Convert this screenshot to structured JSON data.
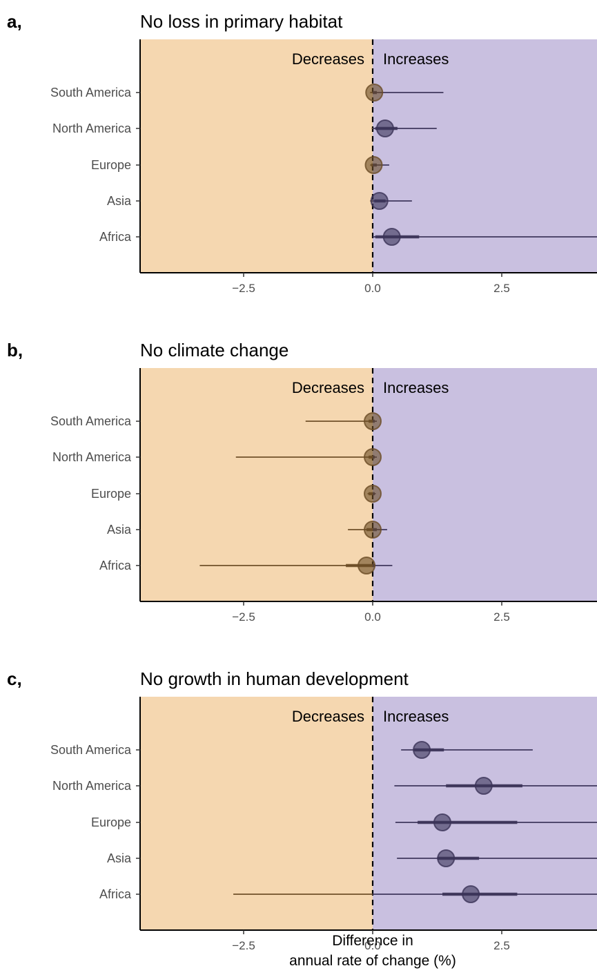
{
  "colors": {
    "decrease_bg": "#f5d7b0",
    "increase_bg": "#c9c0e0",
    "decrease_mark": "#6b4c26",
    "increase_mark": "#3b3358"
  },
  "region_labels": {
    "decrease": "Decreases",
    "increase": "Increases"
  },
  "xaxis": {
    "label_line1": "Difference in",
    "label_line2": "annual rate of change (%)"
  },
  "chart_data": [
    {
      "type": "forest",
      "panel": "a,",
      "title": "No loss in primary habitat",
      "xlim": [
        -4.5,
        4.5
      ],
      "xticks": [
        -2.5,
        0.0,
        2.5
      ],
      "xtick_labels": [
        "−2.5",
        "0.0",
        "2.5"
      ],
      "categories": [
        "South America",
        "North America",
        "Europe",
        "Asia",
        "Africa"
      ],
      "estimates": [
        0.03,
        0.24,
        0.02,
        0.13,
        0.37
      ],
      "inner_low": [
        0.0,
        0.05,
        -0.03,
        0.03,
        0.05
      ],
      "inner_high": [
        0.08,
        0.48,
        0.08,
        0.25,
        0.9
      ],
      "outer_low": [
        -0.05,
        -0.02,
        -0.05,
        -0.05,
        0.0
      ],
      "outer_high": [
        1.37,
        1.24,
        0.32,
        0.76,
        4.5
      ]
    },
    {
      "type": "forest",
      "panel": "b,",
      "title": "No climate change",
      "xlim": [
        -4.5,
        4.5
      ],
      "xticks": [
        -2.5,
        0.0,
        2.5
      ],
      "xtick_labels": [
        "−2.5",
        "0.0",
        "2.5"
      ],
      "categories": [
        "South America",
        "North America",
        "Europe",
        "Asia",
        "Africa"
      ],
      "estimates": [
        0.0,
        0.0,
        0.0,
        0.0,
        -0.12
      ],
      "inner_low": [
        -0.08,
        -0.08,
        -0.08,
        -0.12,
        -0.52
      ],
      "inner_high": [
        0.04,
        0.04,
        0.04,
        0.08,
        0.05
      ],
      "outer_low": [
        -1.3,
        -2.65,
        -0.1,
        -0.48,
        -3.35
      ],
      "outer_high": [
        0.08,
        0.08,
        0.06,
        0.28,
        0.38
      ]
    },
    {
      "type": "forest",
      "panel": "c,",
      "title": "No growth in human development",
      "xlim": [
        -4.5,
        4.5
      ],
      "xticks": [
        -2.5,
        0.0,
        2.5
      ],
      "xtick_labels": [
        "−2.5",
        "0.0",
        "2.5"
      ],
      "categories": [
        "South America",
        "North America",
        "Europe",
        "Asia",
        "Africa"
      ],
      "estimates": [
        0.95,
        2.15,
        1.35,
        1.42,
        1.9
      ],
      "inner_low": [
        0.8,
        1.42,
        0.87,
        1.25,
        1.35
      ],
      "inner_high": [
        1.38,
        2.9,
        2.8,
        2.06,
        2.8
      ],
      "outer_low": [
        0.55,
        0.42,
        0.44,
        0.47,
        -2.7
      ],
      "outer_high": [
        3.1,
        4.5,
        4.5,
        4.5,
        4.5
      ]
    }
  ]
}
